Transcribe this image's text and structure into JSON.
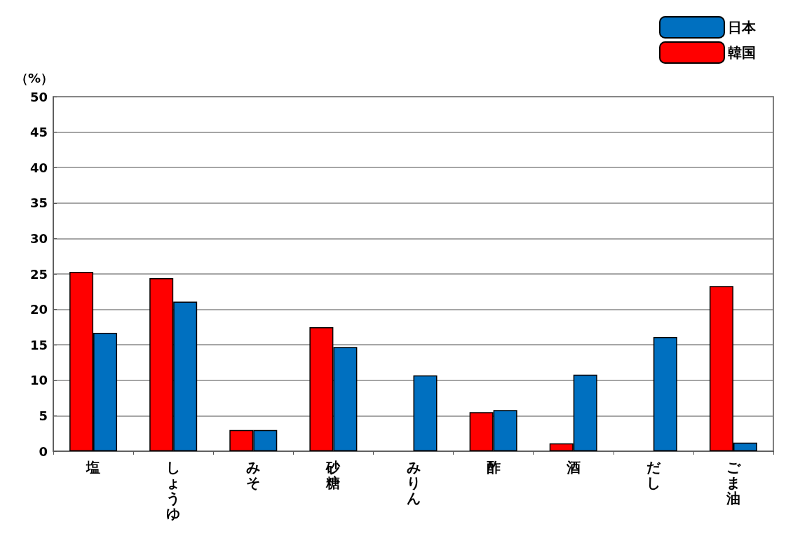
{
  "chart_data": {
    "type": "bar",
    "ylabel": "（%）",
    "categories": [
      "塩",
      "しょうゆ",
      "みそ",
      "砂糖",
      "みりん",
      "酢",
      "酒",
      "だし",
      "ごま油"
    ],
    "series": [
      {
        "name": "韓国",
        "color": "#ff0000",
        "values": [
          25.3,
          24.4,
          3.0,
          17.5,
          0,
          5.5,
          1.1,
          0,
          23.3
        ]
      },
      {
        "name": "日本",
        "color": "#0070c0",
        "values": [
          16.7,
          21.1,
          3.0,
          14.7,
          10.7,
          5.8,
          10.8,
          16.1,
          1.2
        ]
      }
    ],
    "ylim": [
      0,
      50
    ],
    "yticks": [
      0,
      5,
      10,
      15,
      20,
      25,
      30,
      35,
      40,
      45,
      50
    ],
    "grid": "y",
    "legend": "top right"
  }
}
